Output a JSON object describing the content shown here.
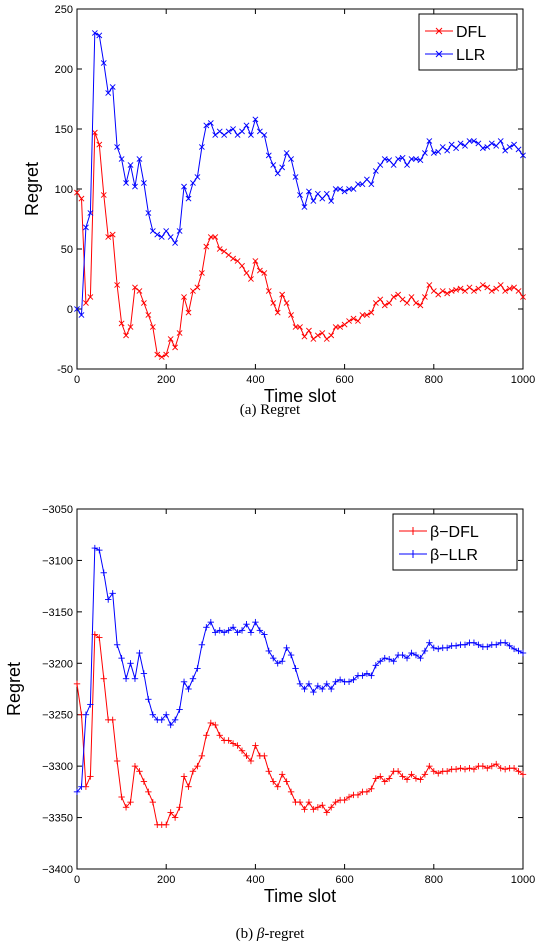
{
  "chart_data": [
    {
      "type": "line",
      "caption": "(a)  Regret",
      "xlabel": "Time slot",
      "ylabel": "Regret",
      "xlim": [
        0,
        1000
      ],
      "ylim": [
        -50,
        250
      ],
      "xticks": [
        "0",
        "200",
        "400",
        "600",
        "800",
        "1000"
      ],
      "yticks": [
        "-50",
        "0",
        "50",
        "100",
        "150",
        "200",
        "250"
      ],
      "marker": "x",
      "grid": false,
      "legend_position": "top-right",
      "x": [
        0,
        10,
        20,
        30,
        40,
        50,
        60,
        70,
        80,
        90,
        100,
        110,
        120,
        130,
        140,
        150,
        160,
        170,
        180,
        190,
        200,
        210,
        220,
        230,
        240,
        250,
        260,
        270,
        280,
        290,
        300,
        310,
        320,
        330,
        340,
        350,
        360,
        370,
        380,
        390,
        400,
        410,
        420,
        430,
        440,
        450,
        460,
        470,
        480,
        490,
        500,
        510,
        520,
        530,
        540,
        550,
        560,
        570,
        580,
        590,
        600,
        610,
        620,
        630,
        640,
        650,
        660,
        670,
        680,
        690,
        700,
        710,
        720,
        730,
        740,
        750,
        760,
        770,
        780,
        790,
        800,
        810,
        820,
        830,
        840,
        850,
        860,
        870,
        880,
        890,
        900,
        910,
        920,
        930,
        940,
        950,
        960,
        970,
        980,
        990,
        1000
      ],
      "series": [
        {
          "name": "DFL",
          "color": "#ff0000",
          "values": [
            97,
            92,
            5,
            10,
            147,
            137,
            95,
            60,
            62,
            20,
            -12,
            -22,
            -15,
            18,
            15,
            5,
            -5,
            -15,
            -38,
            -40,
            -38,
            -25,
            -32,
            -20,
            10,
            -3,
            15,
            18,
            30,
            52,
            60,
            60,
            50,
            48,
            45,
            42,
            40,
            36,
            30,
            25,
            40,
            32,
            30,
            15,
            5,
            -3,
            12,
            5,
            -5,
            -15,
            -15,
            -23,
            -18,
            -25,
            -22,
            -20,
            -25,
            -22,
            -15,
            -15,
            -13,
            -10,
            -8,
            -10,
            -5,
            -5,
            -3,
            5,
            8,
            3,
            5,
            10,
            12,
            8,
            5,
            10,
            5,
            3,
            10,
            20,
            15,
            12,
            15,
            13,
            15,
            16,
            17,
            15,
            18,
            15,
            17,
            20,
            18,
            15,
            17,
            20,
            15,
            17,
            18,
            15,
            10
          ]
        },
        {
          "name": "LLR",
          "color": "#0000ff",
          "values": [
            0,
            -5,
            68,
            80,
            230,
            228,
            205,
            180,
            185,
            135,
            125,
            105,
            120,
            102,
            125,
            105,
            80,
            65,
            62,
            60,
            65,
            60,
            55,
            65,
            102,
            92,
            105,
            110,
            135,
            153,
            155,
            145,
            148,
            145,
            148,
            150,
            145,
            148,
            153,
            145,
            158,
            148,
            145,
            128,
            120,
            113,
            118,
            130,
            125,
            110,
            95,
            85,
            98,
            90,
            96,
            92,
            96,
            90,
            100,
            100,
            98,
            100,
            100,
            104,
            104,
            108,
            104,
            115,
            120,
            125,
            124,
            120,
            125,
            126,
            120,
            125,
            125,
            124,
            130,
            140,
            130,
            131,
            135,
            132,
            137,
            134,
            138,
            136,
            140,
            140,
            138,
            134,
            135,
            138,
            136,
            140,
            132,
            135,
            137,
            133,
            128
          ]
        }
      ]
    },
    {
      "type": "line",
      "caption_prefix": "(b)  ",
      "caption_symbol": "β",
      "caption_suffix": "-regret",
      "xlabel": "Time slot",
      "ylabel": "Regret",
      "xlim": [
        0,
        1000
      ],
      "ylim": [
        -3400,
        -3050
      ],
      "xticks": [
        "0",
        "200",
        "400",
        "600",
        "800",
        "1000"
      ],
      "yticks": [
        "−3400",
        "−3350",
        "−3300",
        "−3250",
        "−3200",
        "−3150",
        "−3100",
        "−3050"
      ],
      "marker": "+",
      "grid": false,
      "legend_position": "top-right",
      "x": [
        0,
        10,
        20,
        30,
        40,
        50,
        60,
        70,
        80,
        90,
        100,
        110,
        120,
        130,
        140,
        150,
        160,
        170,
        180,
        190,
        200,
        210,
        220,
        230,
        240,
        250,
        260,
        270,
        280,
        290,
        300,
        310,
        320,
        330,
        340,
        350,
        360,
        370,
        380,
        390,
        400,
        410,
        420,
        430,
        440,
        450,
        460,
        470,
        480,
        490,
        500,
        510,
        520,
        530,
        540,
        550,
        560,
        570,
        580,
        590,
        600,
        610,
        620,
        630,
        640,
        650,
        660,
        670,
        680,
        690,
        700,
        710,
        720,
        730,
        740,
        750,
        760,
        770,
        780,
        790,
        800,
        810,
        820,
        830,
        840,
        850,
        860,
        870,
        880,
        890,
        900,
        910,
        920,
        930,
        940,
        950,
        960,
        970,
        980,
        990,
        1000
      ],
      "series": [
        {
          "name": "β−DFL",
          "color": "#ff0000",
          "values": [
            -3220,
            -3250,
            -3320,
            -3310,
            -3172,
            -3175,
            -3215,
            -3255,
            -3255,
            -3295,
            -3330,
            -3340,
            -3335,
            -3300,
            -3305,
            -3315,
            -3325,
            -3335,
            -3357,
            -3357,
            -3357,
            -3345,
            -3350,
            -3340,
            -3310,
            -3320,
            -3305,
            -3300,
            -3290,
            -3270,
            -3258,
            -3260,
            -3270,
            -3275,
            -3275,
            -3278,
            -3280,
            -3285,
            -3290,
            -3295,
            -3280,
            -3290,
            -3290,
            -3305,
            -3315,
            -3320,
            -3308,
            -3315,
            -3325,
            -3335,
            -3335,
            -3342,
            -3335,
            -3342,
            -3340,
            -3338,
            -3345,
            -3340,
            -3335,
            -3333,
            -3333,
            -3330,
            -3328,
            -3328,
            -3325,
            -3325,
            -3322,
            -3312,
            -3310,
            -3315,
            -3312,
            -3305,
            -3305,
            -3310,
            -3313,
            -3308,
            -3312,
            -3313,
            -3308,
            -3300,
            -3305,
            -3307,
            -3305,
            -3305,
            -3303,
            -3303,
            -3302,
            -3303,
            -3302,
            -3303,
            -3300,
            -3300,
            -3302,
            -3300,
            -3298,
            -3302,
            -3303,
            -3302,
            -3302,
            -3305,
            -3308
          ]
        },
        {
          "name": "β−LLR",
          "color": "#0000ff",
          "values": [
            -3325,
            -3320,
            -3250,
            -3240,
            -3088,
            -3090,
            -3112,
            -3138,
            -3132,
            -3182,
            -3195,
            -3215,
            -3200,
            -3215,
            -3190,
            -3210,
            -3235,
            -3250,
            -3255,
            -3255,
            -3250,
            -3260,
            -3255,
            -3245,
            -3218,
            -3225,
            -3215,
            -3205,
            -3182,
            -3165,
            -3160,
            -3170,
            -3168,
            -3170,
            -3168,
            -3165,
            -3170,
            -3168,
            -3162,
            -3170,
            -3160,
            -3168,
            -3172,
            -3188,
            -3195,
            -3200,
            -3198,
            -3185,
            -3192,
            -3205,
            -3220,
            -3225,
            -3220,
            -3228,
            -3222,
            -3225,
            -3220,
            -3225,
            -3218,
            -3216,
            -3218,
            -3218,
            -3216,
            -3212,
            -3212,
            -3210,
            -3212,
            -3202,
            -3198,
            -3195,
            -3196,
            -3198,
            -3192,
            -3192,
            -3195,
            -3190,
            -3192,
            -3195,
            -3188,
            -3180,
            -3185,
            -3186,
            -3185,
            -3185,
            -3183,
            -3183,
            -3182,
            -3182,
            -3180,
            -3180,
            -3182,
            -3184,
            -3184,
            -3182,
            -3182,
            -3180,
            -3180,
            -3183,
            -3186,
            -3188,
            -3190
          ]
        }
      ]
    }
  ]
}
